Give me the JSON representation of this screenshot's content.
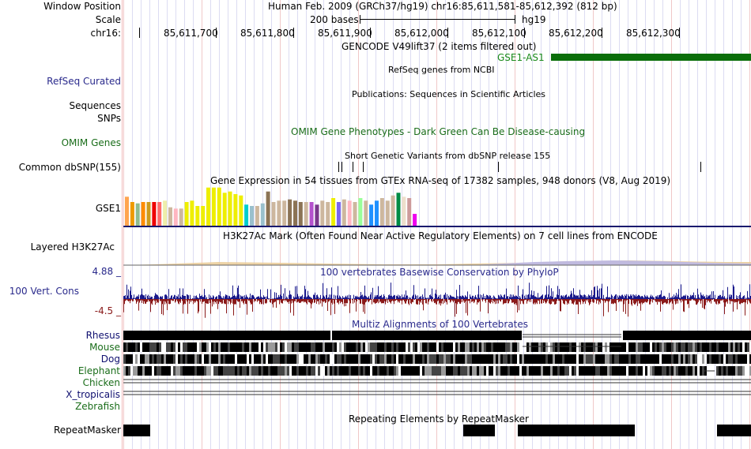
{
  "header": {
    "window_position_label": "Window Position",
    "window_position_value": "Human Feb. 2009 (GRCh37/hg19)   chr16:85,611,581-85,612,392 (812 bp)",
    "scale_label": "Scale",
    "scale_value": "200 bases",
    "scale_assembly": "hg19",
    "chrom_label": "chr16:",
    "ticks": [
      "85,611,700",
      "85,611,800",
      "85,611,900",
      "85,612,000",
      "85,612,100",
      "85,612,200",
      "85,612,300"
    ]
  },
  "tracks": {
    "gencode": {
      "title": "GENCODE V49lift37 (2 items filtered out)",
      "gene_label": "GSE1-AS1",
      "color": "#0a6e0a"
    },
    "refseq": {
      "label": "RefSeq Curated",
      "title": "RefSeq genes from NCBI"
    },
    "publications": {
      "title": "Publications: Sequences in Scientific Articles",
      "label_sequences": "Sequences",
      "label_snps": "SNPs"
    },
    "omim": {
      "title": "OMIM Gene Phenotypes - Dark Green Can Be Disease-causing",
      "label": "OMIM Genes"
    },
    "dbsnp": {
      "title": "Short Genetic Variants from dbSNP release 155",
      "label": "Common dbSNP(155)"
    },
    "gtex": {
      "title": "Gene Expression in 54 tissues from GTEx RNA-seq of 17382 samples, 948 donors (V8, Aug 2019)",
      "label": "GSE1",
      "values": [
        44,
        36,
        34,
        36,
        36,
        36,
        36,
        38,
        28,
        26,
        26,
        36,
        38,
        30,
        30,
        58,
        58,
        58,
        50,
        52,
        48,
        46,
        32,
        30,
        30,
        34,
        52,
        36,
        38,
        38,
        40,
        38,
        36,
        36,
        36,
        32,
        38,
        36,
        42,
        36,
        40,
        38,
        36,
        42,
        38,
        32,
        38,
        42,
        38,
        46,
        50,
        44,
        42,
        18
      ],
      "colors": [
        "#ffa54f",
        "#ee9a00",
        "#8fbc8f",
        "#ff8c00",
        "#cd9b1d",
        "#ee0000",
        "#ff6a6a",
        "#eeeeaa",
        "#cdb79e",
        "#ffb6c1",
        "#cdb79e",
        "#eeee00",
        "#eeee00",
        "#eeee00",
        "#eeee00",
        "#eeee00",
        "#eeee00",
        "#eeee00",
        "#eeee00",
        "#eeee00",
        "#eeee00",
        "#eeee00",
        "#00cdcd",
        "#9ac0cd",
        "#cdb79e",
        "#9ac0cd",
        "#8b7355",
        "#cdb79e",
        "#cdb79e",
        "#cdb79e",
        "#8b7355",
        "#8b7355",
        "#8b7355",
        "#cdb79e",
        "#b452cd",
        "#7a378b",
        "#cdb79e",
        "#cdb79e",
        "#eeee00",
        "#7a67ee",
        "#cdb79e",
        "#ffb6c1",
        "#cdb79e",
        "#9aff9a",
        "#cdb79e",
        "#1e90ff",
        "#1e90ff",
        "#cdb79e",
        "#cdb79e",
        "#cdb79e",
        "#008b45",
        "#eedfcc",
        "#cd9b9b",
        "#ee00ee"
      ]
    },
    "h3k27ac": {
      "title": "H3K27Ac Mark (Often Found Near Active Regulatory Elements) on 7 cell lines from ENCODE",
      "label": "Layered H3K27Ac"
    },
    "conservation": {
      "title": "100 vertebrates Basewise Conservation by PhyloP",
      "label": "100 Vert. Cons",
      "max": "4.88 _",
      "min": "-4.5 _",
      "positive_color": "#1a1a8c",
      "negative_color": "#8b1a1a"
    },
    "multiz": {
      "title": "Multiz Alignments of 100 Vertebrates",
      "species": [
        "Rhesus",
        "Mouse",
        "Dog",
        "Elephant",
        "Chicken",
        "X_tropicalis",
        "Zebrafish"
      ]
    },
    "repeatmasker": {
      "title": "Repeating Elements by RepeatMasker",
      "label": "RepeatMasker"
    }
  }
}
